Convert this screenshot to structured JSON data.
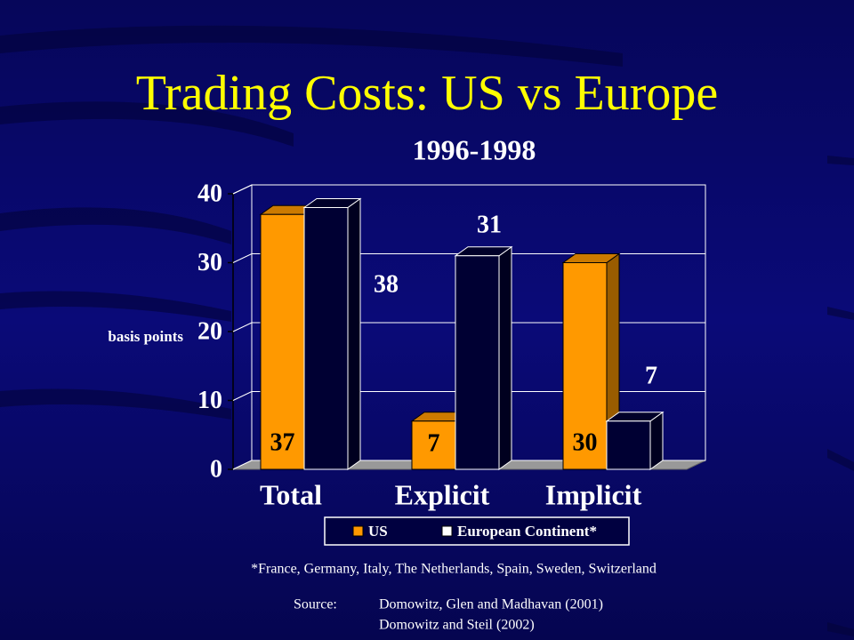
{
  "chart_data": {
    "type": "bar3d",
    "title": "Trading Costs: US vs Europe",
    "subtitle": "1996-1998",
    "y_label": "basis points",
    "categories": [
      "Total",
      "Explicit",
      "Implicit"
    ],
    "series": [
      {
        "name": "US",
        "color": "#ff9900",
        "values": [
          37,
          7,
          30
        ]
      },
      {
        "name": "European Continent*",
        "color": "#000033",
        "values": [
          38,
          31,
          7
        ]
      }
    ],
    "ylim": [
      0,
      40
    ],
    "yticks": [
      0,
      10,
      20,
      30,
      40
    ],
    "grid": true,
    "legend": "bottom"
  },
  "footnote": "*France, Germany, Italy, The Netherlands, Spain, Sweden, Switzerland",
  "source": {
    "label": "Source:",
    "lines": [
      "Domowitz, Glen and Madhavan (2001)",
      "Domowitz and Steil (2002)"
    ]
  }
}
